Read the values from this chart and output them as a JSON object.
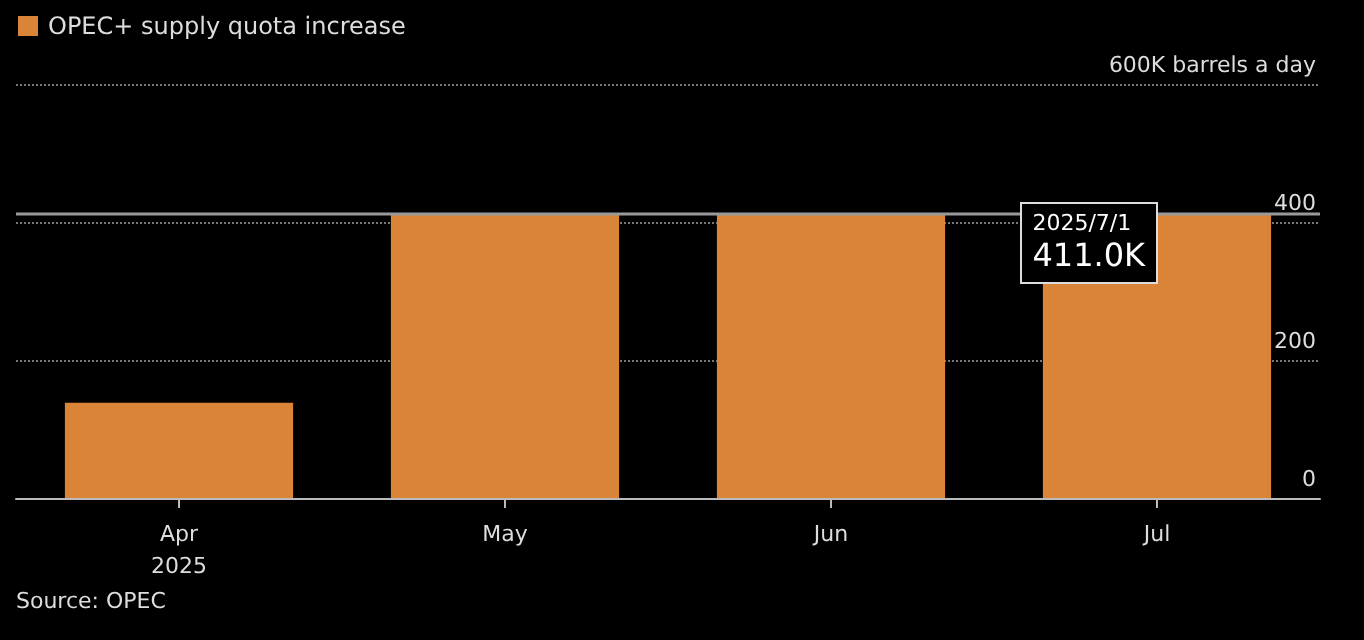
{
  "chart_data": {
    "type": "bar",
    "categories": [
      "Apr\n2025",
      "May",
      "Jun",
      "Jul"
    ],
    "series": [
      {
        "name": "OPEC+ supply quota increase",
        "color": "#d98436",
        "values": [
          138,
          411,
          411,
          411
        ]
      }
    ],
    "ylim": [
      0,
      600
    ],
    "yticks": [
      0,
      200,
      400,
      {
        "value": 600,
        "label": "600K barrels a day"
      }
    ],
    "grid": "y",
    "legend": "top left",
    "ref_lines": [
      {
        "axis": "y",
        "value": 411,
        "label": null,
        "color": "#9a9a9a",
        "line_style": "solid"
      }
    ],
    "annotations": [
      {
        "text": "2025/7/1\n411.0K",
        "x": "Jul",
        "y": 411
      },
      "Source: OPEC"
    ]
  }
}
